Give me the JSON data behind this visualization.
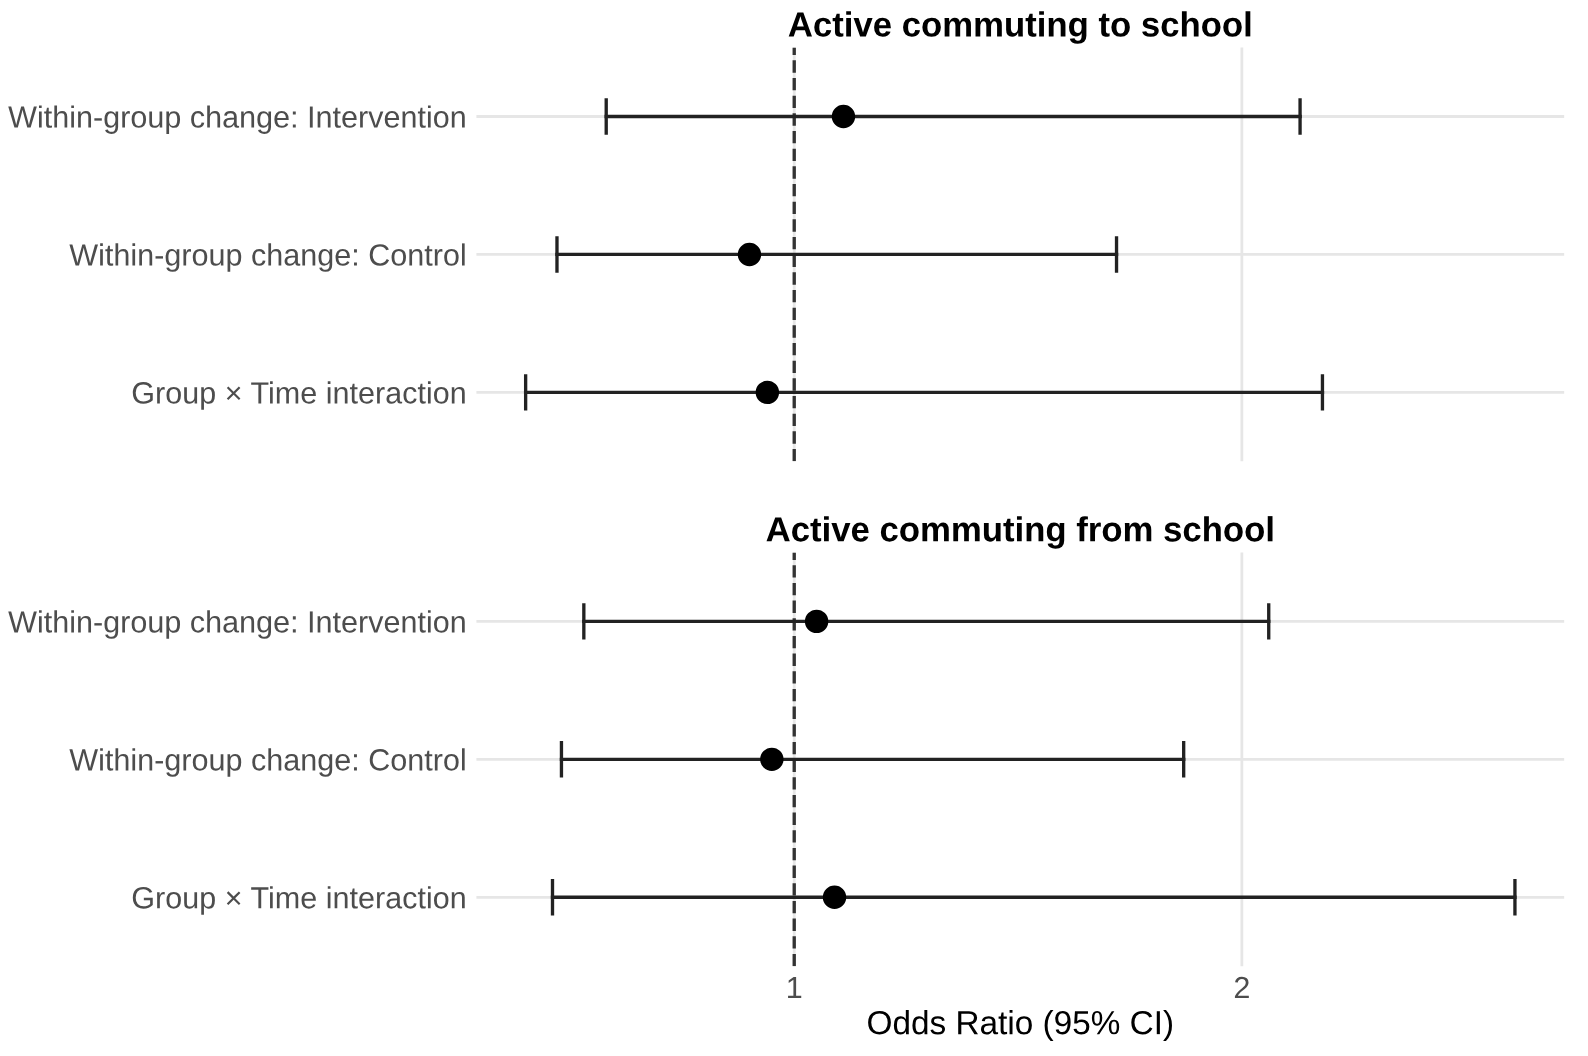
{
  "chart_data": [
    {
      "type": "scatter",
      "title": "Active commuting to school",
      "orientation": "horizontal",
      "categories": [
        "Within-group change: Intervention",
        "Within-group change: Control",
        "Group × Time interaction"
      ],
      "series": [
        {
          "color": "#000000",
          "values": [
            1.11,
            0.9,
            0.94
          ],
          "errors": [
            [
              0.58,
              2.13
            ],
            [
              0.47,
              1.72
            ],
            [
              0.4,
              2.18
            ]
          ]
        }
      ],
      "xlim": [
        0.29,
        2.72
      ],
      "xticks": [
        1,
        2
      ],
      "tick_labels": "y",
      "grid": true,
      "marker": "circle",
      "ref_lines": [
        {
          "axis": "x",
          "value": 1,
          "line_style": "dashed",
          "color": "#333333"
        }
      ]
    },
    {
      "type": "scatter",
      "title": "Active commuting from school",
      "orientation": "horizontal",
      "xlabel": "Odds Ratio (95% CI)",
      "categories": [
        "Within-group change: Intervention",
        "Within-group change: Control",
        "Group × Time interaction"
      ],
      "series": [
        {
          "color": "#000000",
          "values": [
            1.05,
            0.95,
            1.09
          ],
          "errors": [
            [
              0.53,
              2.06
            ],
            [
              0.48,
              1.87
            ],
            [
              0.46,
              2.61
            ]
          ]
        }
      ],
      "xlim": [
        0.29,
        2.72
      ],
      "xticks": [
        1,
        2
      ],
      "grid": true,
      "marker": "circle",
      "ref_lines": [
        {
          "axis": "x",
          "value": 1,
          "line_style": "dashed",
          "color": "#333333"
        }
      ]
    }
  ]
}
